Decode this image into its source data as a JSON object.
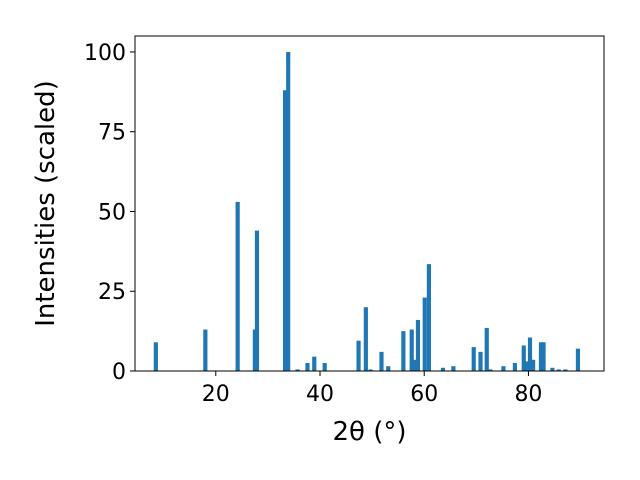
{
  "chart_data": {
    "type": "bar",
    "title": "",
    "xlabel": "2θ (°)",
    "ylabel": "Intensities (scaled)",
    "xlim": [
      4.5,
      94.5
    ],
    "ylim": [
      0,
      105
    ],
    "xticks": [
      20,
      40,
      60,
      80
    ],
    "yticks": [
      0,
      25,
      50,
      75,
      100
    ],
    "bar_width": 0.8,
    "bar_color": "#1f77b4",
    "grid": false,
    "legend": "none",
    "x": [
      8.5,
      18.0,
      24.2,
      27.5,
      27.9,
      33.3,
      33.9,
      35.7,
      37.6,
      38.9,
      40.9,
      47.4,
      48.8,
      49.7,
      51.8,
      53.1,
      56.0,
      57.6,
      58.1,
      58.8,
      60.1,
      60.9,
      63.6,
      65.6,
      69.5,
      70.8,
      72.0,
      72.7,
      75.2,
      77.4,
      79.1,
      79.6,
      80.3,
      80.9,
      82.4,
      82.9,
      84.6,
      85.8,
      87.1,
      89.5
    ],
    "values": [
      9,
      13,
      53,
      13,
      44,
      88,
      100,
      0.5,
      2.5,
      4.5,
      2.5,
      9.5,
      20,
      0.5,
      6,
      1.5,
      12.5,
      13,
      3.5,
      16,
      23,
      33.5,
      1,
      1.5,
      7.5,
      6,
      13.5,
      0.5,
      1.5,
      2.5,
      8,
      3,
      10.5,
      3.5,
      9,
      9,
      1,
      0.5,
      0.5,
      7
    ]
  }
}
